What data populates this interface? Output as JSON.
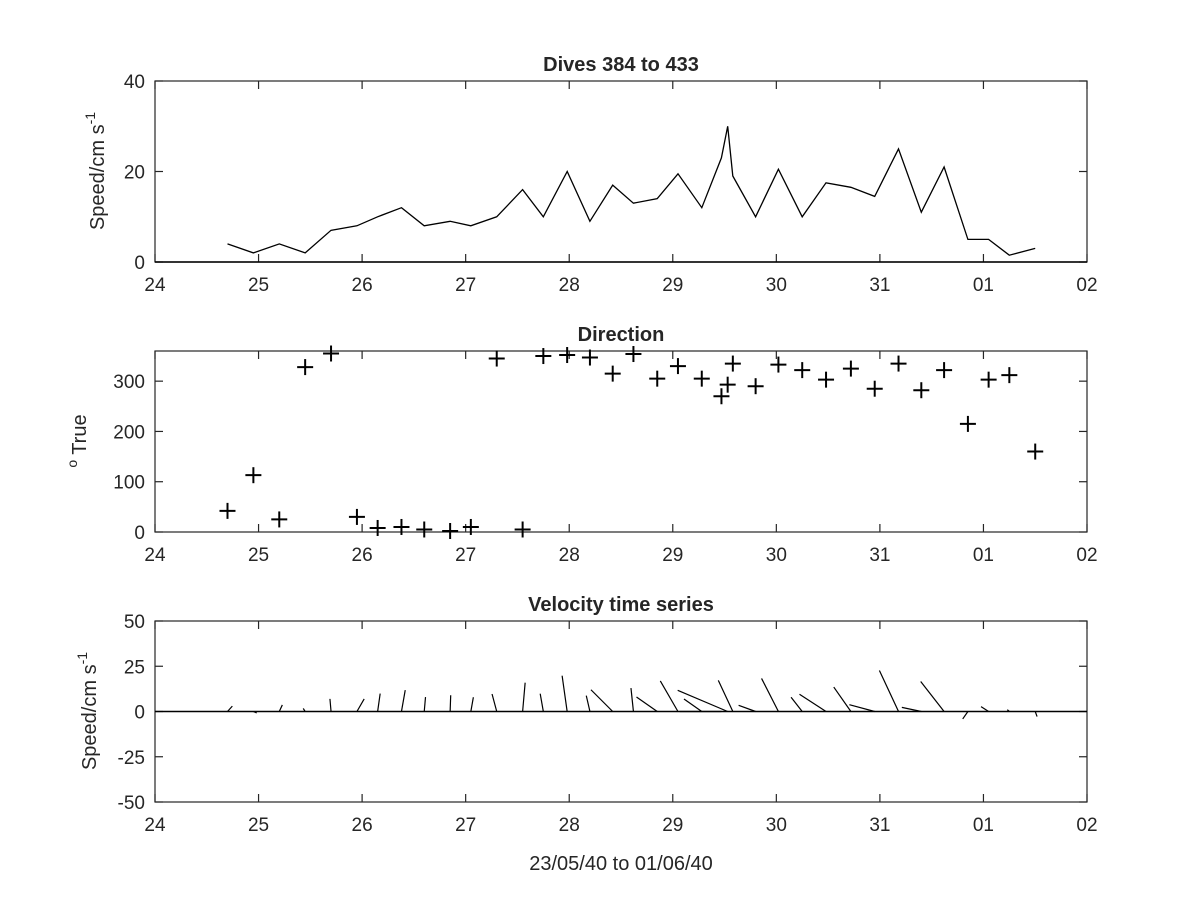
{
  "chart_data": [
    {
      "type": "line",
      "title": "Dives 384 to 433",
      "ylabel": "Speed/cm s",
      "ylabel_superscript": "-1",
      "xlabel": "",
      "x_tick_labels": [
        "24",
        "25",
        "26",
        "27",
        "28",
        "29",
        "30",
        "31",
        "01",
        "02"
      ],
      "xlim": [
        24,
        33
      ],
      "ylim": [
        0,
        40
      ],
      "y_ticks": [
        0,
        20,
        40
      ],
      "baseline": 0,
      "series": [
        {
          "x": [
            24.7,
            24.95,
            25.2,
            25.45,
            25.7,
            25.95,
            26.15,
            26.38,
            26.6,
            26.85,
            27.05,
            27.3,
            27.55,
            27.75,
            27.98,
            28.2,
            28.42,
            28.62,
            28.85,
            29.05,
            29.28,
            29.47,
            29.53,
            29.58,
            29.8,
            30.02,
            30.25,
            30.48,
            30.72,
            30.95,
            31.18,
            31.4,
            31.62,
            31.85,
            32.05,
            32.25,
            32.5
          ],
          "y": [
            4,
            2,
            4,
            2,
            7,
            8,
            10,
            12,
            8,
            9,
            8,
            10,
            16,
            10,
            20,
            9,
            17,
            13,
            14,
            19.5,
            12,
            23,
            30,
            19,
            10,
            20.5,
            10,
            17.5,
            16.5,
            14.5,
            25,
            11,
            21,
            5,
            5,
            1.5,
            3
          ]
        }
      ]
    },
    {
      "type": "scatter",
      "title": "Direction",
      "ylabel": "True",
      "ylabel_prefix": "o",
      "xlabel": "",
      "x_tick_labels": [
        "24",
        "25",
        "26",
        "27",
        "28",
        "29",
        "30",
        "31",
        "01",
        "02"
      ],
      "xlim": [
        24,
        33
      ],
      "ylim": [
        0,
        360
      ],
      "y_ticks": [
        0,
        100,
        200,
        300
      ],
      "marker": "+",
      "series": [
        {
          "x": [
            24.7,
            24.95,
            25.2,
            25.45,
            25.7,
            25.95,
            26.15,
            26.38,
            26.6,
            26.85,
            27.05,
            27.3,
            27.55,
            27.75,
            27.98,
            28.2,
            28.42,
            28.62,
            28.85,
            29.05,
            29.28,
            29.47,
            29.53,
            29.58,
            29.8,
            30.02,
            30.25,
            30.48,
            30.72,
            30.95,
            31.18,
            31.4,
            31.62,
            31.85,
            32.05,
            32.25,
            32.5
          ],
          "y": [
            42,
            113,
            25,
            328,
            355,
            30,
            8,
            10,
            5,
            2,
            10,
            345,
            5,
            350,
            352,
            347,
            315,
            354,
            305,
            330,
            305,
            270,
            293,
            335,
            290,
            333,
            322,
            303,
            325,
            285,
            335,
            282,
            322,
            215,
            303,
            312,
            160
          ]
        }
      ]
    },
    {
      "type": "line",
      "subtype": "stick-vectors",
      "title": "Velocity time series",
      "ylabel": "Speed/cm s",
      "ylabel_superscript": "-1",
      "xlabel": "23/05/40 to 01/06/40",
      "x_tick_labels": [
        "24",
        "25",
        "26",
        "27",
        "28",
        "29",
        "30",
        "31",
        "01",
        "02"
      ],
      "xlim": [
        24,
        33
      ],
      "ylim": [
        -50,
        50
      ],
      "y_ticks": [
        -50,
        -25,
        0,
        25,
        50
      ],
      "baseline": 0,
      "note_units": "speed in cm/s, direction in degrees True",
      "sticks": {
        "x": [
          24.7,
          24.95,
          25.2,
          25.45,
          25.7,
          25.95,
          26.15,
          26.38,
          26.6,
          26.85,
          27.05,
          27.3,
          27.55,
          27.75,
          27.98,
          28.2,
          28.42,
          28.62,
          28.85,
          29.05,
          29.28,
          29.47,
          29.53,
          29.58,
          29.8,
          30.02,
          30.25,
          30.48,
          30.72,
          30.95,
          31.18,
          31.4,
          31.62,
          31.85,
          32.05,
          32.25,
          32.5
        ],
        "speed": [
          4,
          2,
          4,
          2,
          7,
          8,
          10,
          12,
          8,
          9,
          8,
          10,
          16,
          10,
          20,
          9,
          17,
          13,
          14,
          19.5,
          12,
          23,
          30,
          19,
          10,
          20.5,
          10,
          17.5,
          16.5,
          14.5,
          25,
          11,
          21,
          5,
          5,
          1.5,
          3
        ],
        "direction": [
          42,
          113,
          25,
          328,
          355,
          30,
          8,
          10,
          5,
          2,
          10,
          345,
          5,
          350,
          352,
          347,
          315,
          354,
          305,
          330,
          305,
          270,
          293,
          335,
          290,
          333,
          322,
          303,
          325,
          285,
          335,
          282,
          322,
          215,
          303,
          312,
          160
        ]
      }
    }
  ]
}
